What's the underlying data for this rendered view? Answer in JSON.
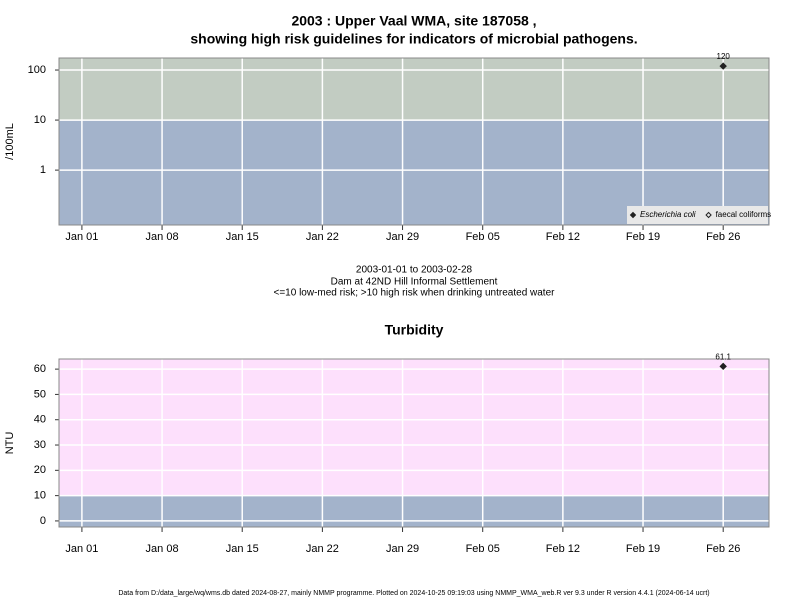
{
  "chart_data": [
    {
      "type": "scatter",
      "title": [
        "2003 : Upper Vaal WMA, site 187058 ,",
        "showing high risk guidelines for indicators of microbial pathogens."
      ],
      "y_label": "/100mL",
      "yscale": "log",
      "ylim": [
        0.08,
        174
      ],
      "yticks": [
        1,
        10,
        100
      ],
      "xlim": [
        "2002-12-30",
        "2003-03-02"
      ],
      "xticks": [
        {
          "value": "2003-01-01",
          "label": "Jan 01"
        },
        {
          "value": "2003-01-08",
          "label": "Jan 08"
        },
        {
          "value": "2003-01-15",
          "label": "Jan 15"
        },
        {
          "value": "2003-01-22",
          "label": "Jan 22"
        },
        {
          "value": "2003-01-29",
          "label": "Jan 29"
        },
        {
          "value": "2003-02-05",
          "label": "Feb 05"
        },
        {
          "value": "2003-02-12",
          "label": "Feb 12"
        },
        {
          "value": "2003-02-19",
          "label": "Feb 19"
        },
        {
          "value": "2003-02-26",
          "label": "Feb 26"
        }
      ],
      "threshold": 10,
      "band_colors": [
        "#a3b3cb",
        "#c2ccc2"
      ],
      "grid": true,
      "legend": "lower right",
      "series": [
        {
          "name": "Escherichia coli",
          "color": "#222222",
          "marker": "filled",
          "x": [
            "2003-02-26"
          ],
          "values": [
            120
          ],
          "value_labels": [
            "120"
          ]
        },
        {
          "name": "faecal coliforms",
          "color": "#222222",
          "marker": "open",
          "x": [],
          "values": []
        }
      ]
    },
    {
      "type": "scatter",
      "title": [
        "Turbidity"
      ],
      "y_label": "NTU",
      "yscale": "linear",
      "ylim": [
        -2.4,
        64
      ],
      "yticks": [
        0,
        10,
        20,
        30,
        40,
        50,
        60
      ],
      "xlim": [
        "2002-12-30",
        "2003-03-02"
      ],
      "xticks": [
        {
          "value": "2003-01-01",
          "label": "Jan 01"
        },
        {
          "value": "2003-01-08",
          "label": "Jan 08"
        },
        {
          "value": "2003-01-15",
          "label": "Jan 15"
        },
        {
          "value": "2003-01-22",
          "label": "Jan 22"
        },
        {
          "value": "2003-01-29",
          "label": "Jan 29"
        },
        {
          "value": "2003-02-05",
          "label": "Feb 05"
        },
        {
          "value": "2003-02-12",
          "label": "Feb 12"
        },
        {
          "value": "2003-02-19",
          "label": "Feb 19"
        },
        {
          "value": "2003-02-26",
          "label": "Feb 26"
        }
      ],
      "threshold": 10,
      "band_colors": [
        "#a3b3cb",
        "#fde0fc"
      ],
      "grid": true,
      "series": [
        {
          "color": "#222222",
          "marker": "filled",
          "x": [
            "2003-02-26"
          ],
          "values": [
            61.1
          ],
          "value_labels": [
            "61.1"
          ]
        }
      ]
    }
  ],
  "caption": [
    "2003-01-01 to 2003-02-28",
    "Dam at 42ND Hill Informal Settlement",
    "<=10 low-med risk; >10 high risk when drinking untreated water"
  ],
  "footer": "Data from D:/data_large/wq/wms.db dated 2024-08-27, mainly NMMP programme. Plotted on 2024-10-25 09:19:03 using NMMP_WMA_web.R ver 9.3 under R version 4.4.1 (2024-06-14 ucrt)"
}
